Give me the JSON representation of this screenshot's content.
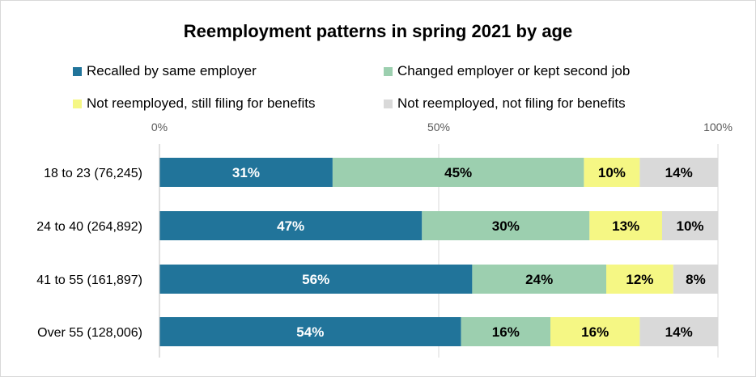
{
  "chart_data": {
    "type": "bar",
    "orientation": "horizontal",
    "stacked": true,
    "percent_stacked": true,
    "title": "Reemployment patterns in spring 2021 by age",
    "categories": [
      "18 to 23 (76,245)",
      "24 to 40 (264,892)",
      "41 to 55 (161,897)",
      "Over 55 (128,006)"
    ],
    "series": [
      {
        "name": "Recalled by same employer",
        "values": [
          31,
          47,
          56,
          54
        ],
        "color": "#21749a"
      },
      {
        "name": "Changed employer or kept second job",
        "values": [
          45,
          30,
          24,
          16
        ],
        "color": "#9ccfaf"
      },
      {
        "name": "Not reemployed, still filing for benefits",
        "values": [
          10,
          13,
          12,
          16
        ],
        "color": "#f5f784"
      },
      {
        "name": "Not reemployed, not filing for benefits",
        "values": [
          14,
          10,
          8,
          14
        ],
        "color": "#d9d9d9"
      }
    ],
    "x_ticks": [
      "0%",
      "50%",
      "100%"
    ],
    "xlim": [
      0,
      100
    ],
    "legend_position": "top",
    "grid": true
  }
}
